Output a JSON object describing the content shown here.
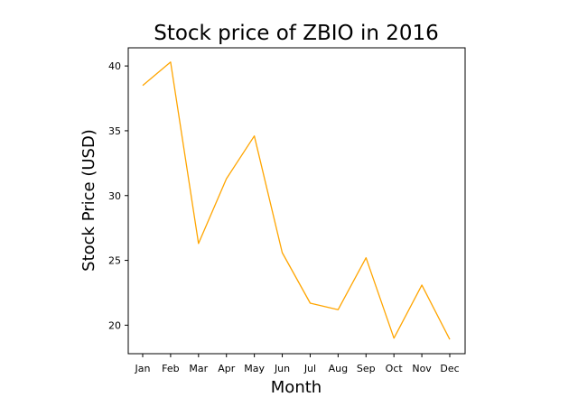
{
  "chart_data": {
    "type": "line",
    "title": "Stock price of ZBIO in 2016",
    "xlabel": "Month",
    "ylabel": "Stock Price (USD)",
    "categories": [
      "Jan",
      "Feb",
      "Mar",
      "Apr",
      "May",
      "Jun",
      "Jul",
      "Aug",
      "Sep",
      "Oct",
      "Nov",
      "Dec"
    ],
    "series": [
      {
        "values": [
          38.5,
          40.3,
          26.3,
          31.3,
          34.6,
          25.6,
          21.7,
          21.2,
          25.2,
          19.0,
          23.1,
          18.9
        ],
        "color": "#ffa500"
      }
    ],
    "yticks": [
      20,
      25,
      30,
      35,
      40
    ],
    "ylim": [
      17.8,
      41.4
    ],
    "grid": false,
    "legend": "none"
  }
}
